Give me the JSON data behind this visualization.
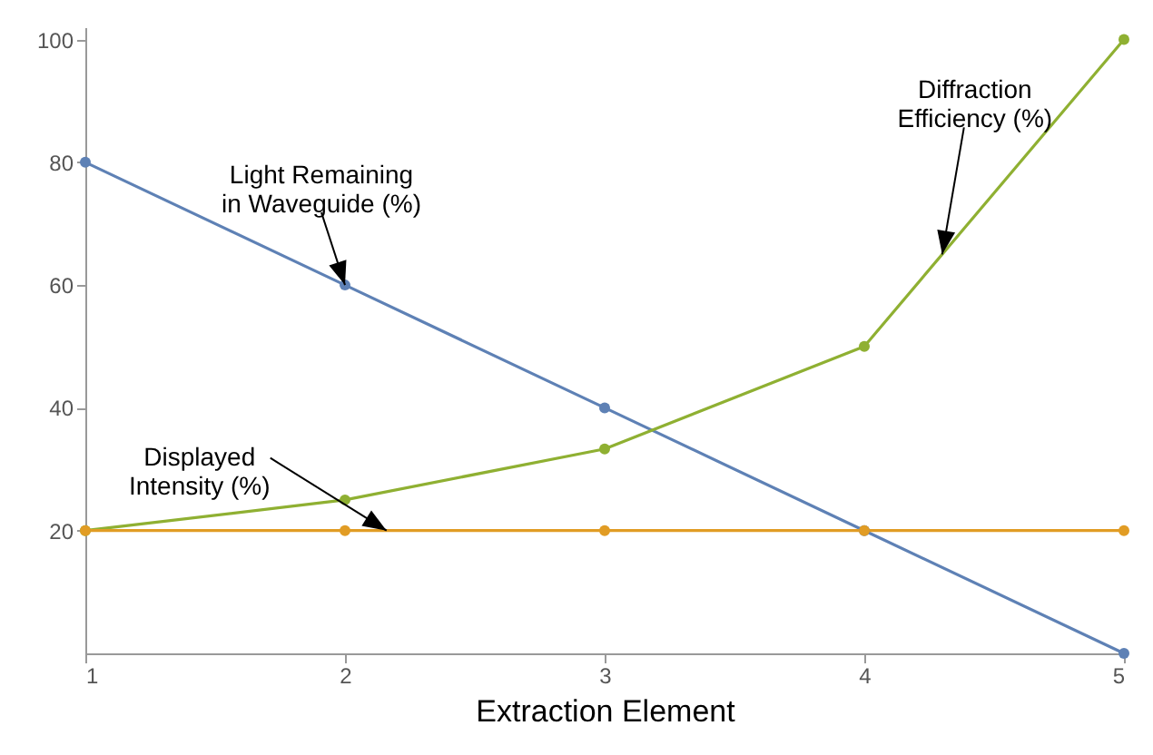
{
  "chart_data": {
    "type": "line",
    "xlabel": "Extraction Element",
    "x": [
      1,
      2,
      3,
      4,
      5
    ],
    "series": [
      {
        "color": "#5e81b5",
        "values": [
          80,
          60,
          40,
          20,
          0
        ]
      },
      {
        "color": "#8fb032",
        "values": [
          20,
          25,
          33.3,
          50,
          100
        ]
      },
      {
        "color": "#e19c24",
        "values": [
          20,
          20,
          20,
          20,
          20
        ]
      }
    ],
    "xlim": [
      1,
      5
    ],
    "xticks": [
      1,
      2,
      3,
      4,
      5
    ],
    "ylim": [
      0,
      102
    ],
    "yticks": [
      20,
      40,
      60,
      80,
      100
    ],
    "grid": false,
    "marker": "circle",
    "line_style": "solid",
    "annotations": [
      {
        "text": "Light Remaining\nin Waveguide (%)",
        "x": 2,
        "y": 60
      },
      {
        "text": "Diffraction\nEfficiency (%)",
        "x": 4.3,
        "y": 65
      },
      {
        "text": "Displayed\nIntensity (%)",
        "x": 2.16,
        "y": 20
      }
    ]
  }
}
